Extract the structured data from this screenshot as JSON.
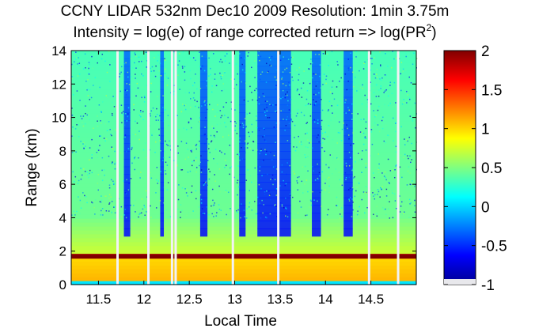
{
  "chart_data": {
    "type": "heatmap",
    "title_line1": "CCNY LIDAR 532nm Dec10 2009 Resolution: 1min 3.75m",
    "title_line2_main": "Intensity = log(e) of range corrected return => log(PR",
    "title_line2_sup": "2",
    "title_line2_end": ")",
    "xlabel": "Local Time",
    "ylabel": "Range (km)",
    "xlim": [
      11.2,
      15.0
    ],
    "ylim": [
      0,
      14
    ],
    "x_ticks": [
      "11.5",
      "12",
      "12.5",
      "13",
      "13.5",
      "14",
      "14.5"
    ],
    "x_tick_values": [
      11.5,
      12.0,
      12.5,
      13.0,
      13.5,
      14.0,
      14.5
    ],
    "y_ticks": [
      "0",
      "2",
      "4",
      "6",
      "8",
      "10",
      "12",
      "14"
    ],
    "y_tick_values": [
      0,
      2,
      4,
      6,
      8,
      10,
      12,
      14
    ],
    "colorbar": {
      "range": [
        -1,
        2
      ],
      "ticks": [
        "-1",
        "-0.5",
        "0",
        "0.5",
        "1",
        "1.5",
        "2"
      ],
      "tick_values": [
        -1,
        -0.5,
        0,
        0.5,
        1,
        1.5,
        2
      ],
      "colormap": "jet"
    },
    "features": {
      "boundary_layer_top_km": 1.7,
      "boundary_layer_intensity": 1.9,
      "near_surface_intensity": 1.1,
      "free_troposphere_intensity": 0.4,
      "clear_band_intensity": -0.6,
      "data_gaps_time": [
        11.71,
        12.05,
        12.31,
        12.35,
        12.98,
        13.48,
        14.48,
        14.8
      ],
      "clear_bands_time": [
        [
          11.78,
          11.85
        ],
        [
          12.18,
          12.22
        ],
        [
          12.62,
          12.7
        ],
        [
          13.05,
          13.12
        ],
        [
          13.25,
          13.62
        ],
        [
          13.85,
          13.95
        ],
        [
          14.2,
          14.3
        ]
      ]
    }
  }
}
